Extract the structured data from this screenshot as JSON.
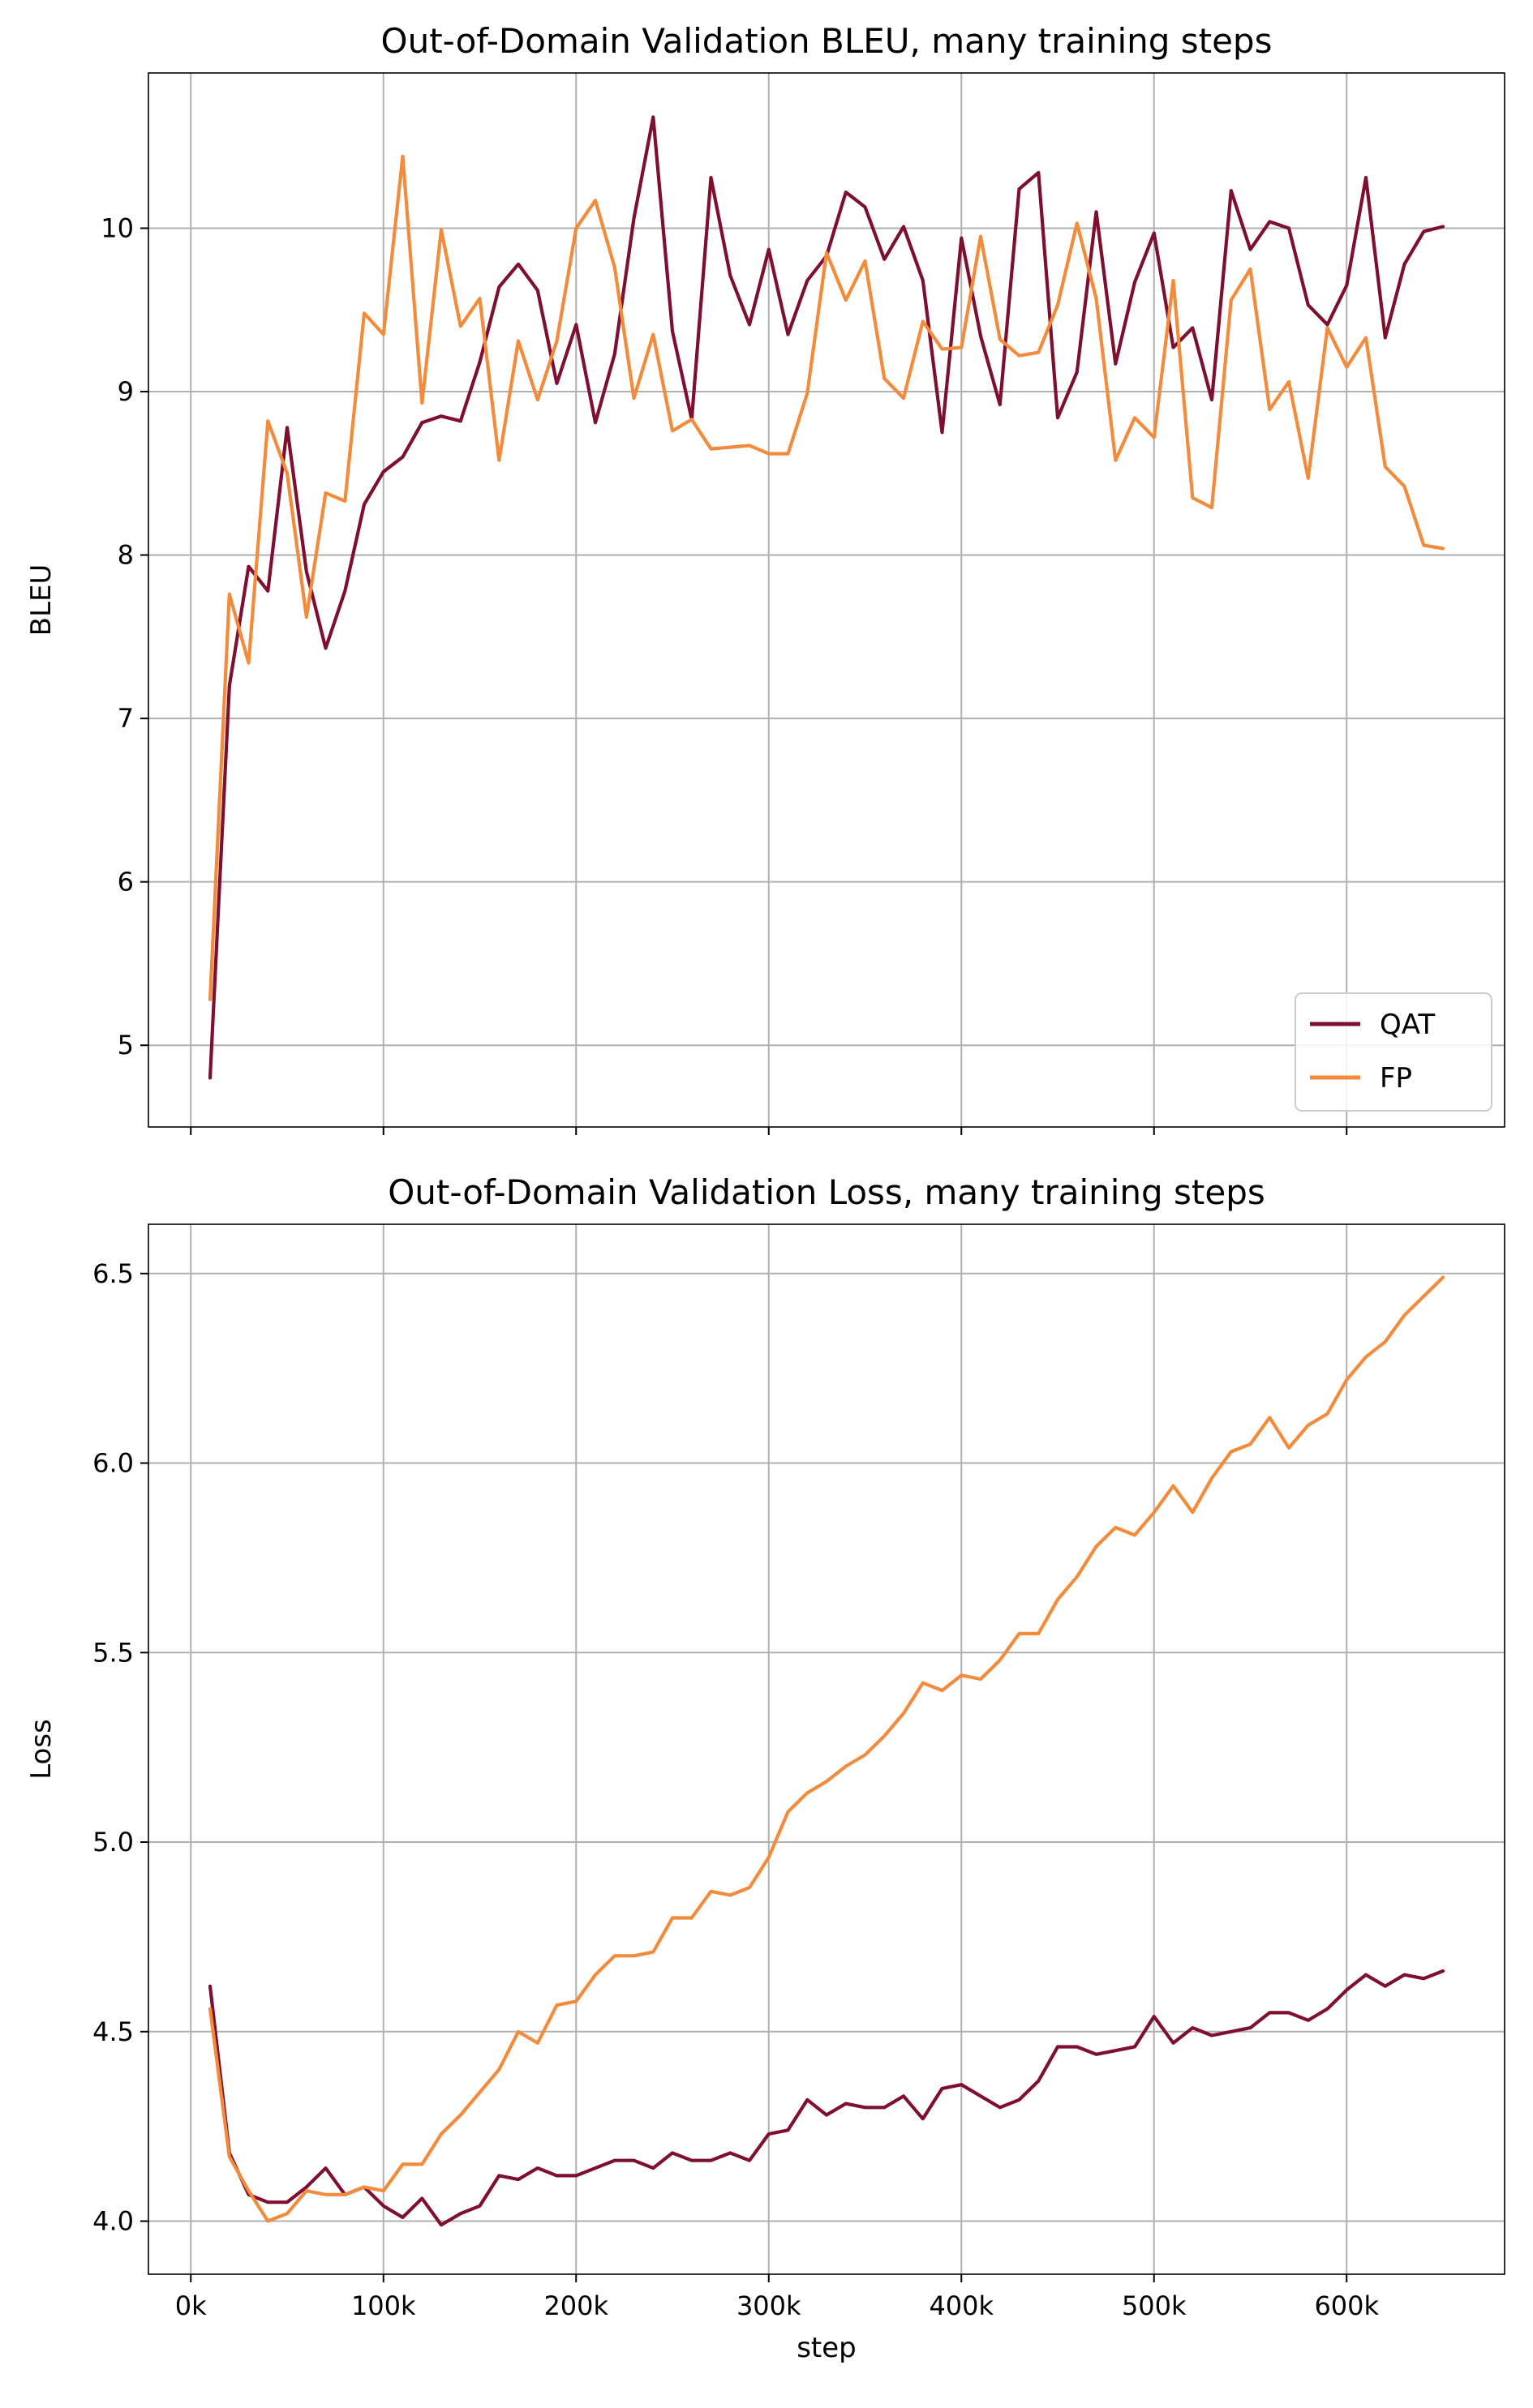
{
  "chart_data": [
    {
      "type": "line",
      "title": "Out-of-Domain Validation BLEU, many training steps",
      "xlabel": "",
      "ylabel": "BLEU",
      "xlim": [
        -22000,
        682000
      ],
      "ylim": [
        4.5,
        10.95
      ],
      "xticks": [
        0,
        100000,
        200000,
        300000,
        400000,
        500000,
        600000
      ],
      "xtick_labels": [],
      "yticks": [
        5,
        6,
        7,
        8,
        9,
        10
      ],
      "ytick_labels": [
        "5",
        "6",
        "7",
        "8",
        "9",
        "10"
      ],
      "grid": true,
      "legend": {
        "location": "lower-right",
        "entries": [
          "QAT",
          "FP"
        ]
      },
      "x": [
        10000,
        20000,
        30000,
        40000,
        50000,
        60000,
        70000,
        80000,
        90000,
        100000,
        110000,
        120000,
        130000,
        140000,
        150000,
        160000,
        170000,
        180000,
        190000,
        200000,
        210000,
        220000,
        230000,
        240000,
        250000,
        260000,
        270000,
        280000,
        290000,
        300000,
        310000,
        320000,
        330000,
        340000,
        350000,
        360000,
        370000,
        380000,
        390000,
        400000,
        410000,
        420000,
        430000,
        440000,
        450000,
        460000,
        470000,
        480000,
        490000,
        500000,
        510000,
        520000,
        530000,
        540000,
        550000,
        560000,
        570000,
        580000,
        590000,
        600000,
        610000,
        620000,
        630000,
        640000,
        650000
      ],
      "series": [
        {
          "name": "QAT",
          "color": "#7f0f2e",
          "values": [
            4.8,
            7.2,
            7.93,
            7.78,
            8.78,
            7.9,
            7.43,
            7.78,
            8.31,
            8.51,
            8.6,
            8.81,
            8.85,
            8.82,
            9.18,
            9.64,
            9.78,
            9.62,
            9.05,
            9.41,
            8.81,
            9.23,
            10.06,
            10.68,
            9.37,
            8.83,
            10.31,
            9.71,
            9.41,
            9.87,
            9.35,
            9.68,
            9.83,
            10.22,
            10.13,
            9.81,
            10.01,
            9.68,
            8.75,
            9.94,
            9.34,
            8.92,
            10.24,
            10.34,
            8.84,
            9.12,
            10.1,
            9.17,
            9.67,
            9.97,
            9.27,
            9.39,
            8.95,
            10.23,
            9.87,
            10.04,
            10.0,
            9.53,
            9.41,
            9.65,
            10.31,
            9.33,
            9.78,
            9.98,
            10.01
          ]
        },
        {
          "name": "FP",
          "color": "#f28b3c",
          "values": [
            5.28,
            7.76,
            7.34,
            8.82,
            8.5,
            7.62,
            8.38,
            8.33,
            9.48,
            9.35,
            10.44,
            8.93,
            9.99,
            9.4,
            9.57,
            8.58,
            9.31,
            8.95,
            9.31,
            10.0,
            10.17,
            9.76,
            8.96,
            9.35,
            8.76,
            8.83,
            8.65,
            8.66,
            8.67,
            8.62,
            8.62,
            8.99,
            9.85,
            9.56,
            9.8,
            9.08,
            8.96,
            9.43,
            9.26,
            9.27,
            9.95,
            9.32,
            9.22,
            9.24,
            9.53,
            10.03,
            9.57,
            8.58,
            8.84,
            8.72,
            9.68,
            8.35,
            8.29,
            9.56,
            9.75,
            8.89,
            9.06,
            8.47,
            9.39,
            9.15,
            9.33,
            8.54,
            8.42,
            8.06,
            8.04
          ]
        }
      ]
    },
    {
      "type": "line",
      "title": "Out-of-Domain Validation Loss, many training steps",
      "xlabel": "step",
      "ylabel": "Loss",
      "xlim": [
        -22000,
        682000
      ],
      "ylim": [
        3.86,
        6.63
      ],
      "xticks": [
        0,
        100000,
        200000,
        300000,
        400000,
        500000,
        600000
      ],
      "xtick_labels": [
        "0k",
        "100k",
        "200k",
        "300k",
        "400k",
        "500k",
        "600k"
      ],
      "yticks": [
        4.0,
        4.5,
        5.0,
        5.5,
        6.0,
        6.5
      ],
      "ytick_labels": [
        "4.0",
        "4.5",
        "5.0",
        "5.5",
        "6.0",
        "6.5"
      ],
      "grid": true,
      "x": [
        10000,
        20000,
        30000,
        40000,
        50000,
        60000,
        70000,
        80000,
        90000,
        100000,
        110000,
        120000,
        130000,
        140000,
        150000,
        160000,
        170000,
        180000,
        190000,
        200000,
        210000,
        220000,
        230000,
        240000,
        250000,
        260000,
        270000,
        280000,
        290000,
        300000,
        310000,
        320000,
        330000,
        340000,
        350000,
        360000,
        370000,
        380000,
        390000,
        400000,
        410000,
        420000,
        430000,
        440000,
        450000,
        460000,
        470000,
        480000,
        490000,
        500000,
        510000,
        520000,
        530000,
        540000,
        550000,
        560000,
        570000,
        580000,
        590000,
        600000,
        610000,
        620000,
        630000,
        640000,
        650000
      ],
      "series": [
        {
          "name": "QAT",
          "color": "#7f0f2e",
          "values": [
            4.62,
            4.18,
            4.07,
            4.05,
            4.05,
            4.09,
            4.14,
            4.07,
            4.09,
            4.04,
            4.01,
            4.06,
            3.99,
            4.02,
            4.04,
            4.12,
            4.11,
            4.14,
            4.12,
            4.12,
            4.14,
            4.16,
            4.16,
            4.14,
            4.18,
            4.16,
            4.16,
            4.18,
            4.16,
            4.23,
            4.24,
            4.32,
            4.28,
            4.31,
            4.3,
            4.3,
            4.33,
            4.27,
            4.35,
            4.36,
            4.33,
            4.3,
            4.32,
            4.37,
            4.46,
            4.46,
            4.44,
            4.45,
            4.46,
            4.54,
            4.47,
            4.51,
            4.49,
            4.5,
            4.51,
            4.55,
            4.55,
            4.53,
            4.56,
            4.61,
            4.65,
            4.62,
            4.65,
            4.64,
            4.66
          ]
        },
        {
          "name": "FP",
          "color": "#f28b3c",
          "values": [
            4.56,
            4.17,
            4.08,
            4.0,
            4.02,
            4.08,
            4.07,
            4.07,
            4.09,
            4.08,
            4.15,
            4.15,
            4.23,
            4.28,
            4.34,
            4.4,
            4.5,
            4.47,
            4.57,
            4.58,
            4.65,
            4.7,
            4.7,
            4.71,
            4.8,
            4.8,
            4.87,
            4.86,
            4.88,
            4.96,
            5.08,
            5.13,
            5.16,
            5.2,
            5.23,
            5.28,
            5.34,
            5.42,
            5.4,
            5.44,
            5.43,
            5.48,
            5.55,
            5.55,
            5.64,
            5.7,
            5.78,
            5.83,
            5.81,
            5.87,
            5.94,
            5.87,
            5.96,
            6.03,
            6.05,
            6.12,
            6.04,
            6.1,
            6.13,
            6.22,
            6.28,
            6.32,
            6.39,
            6.44,
            6.49
          ]
        }
      ]
    }
  ]
}
